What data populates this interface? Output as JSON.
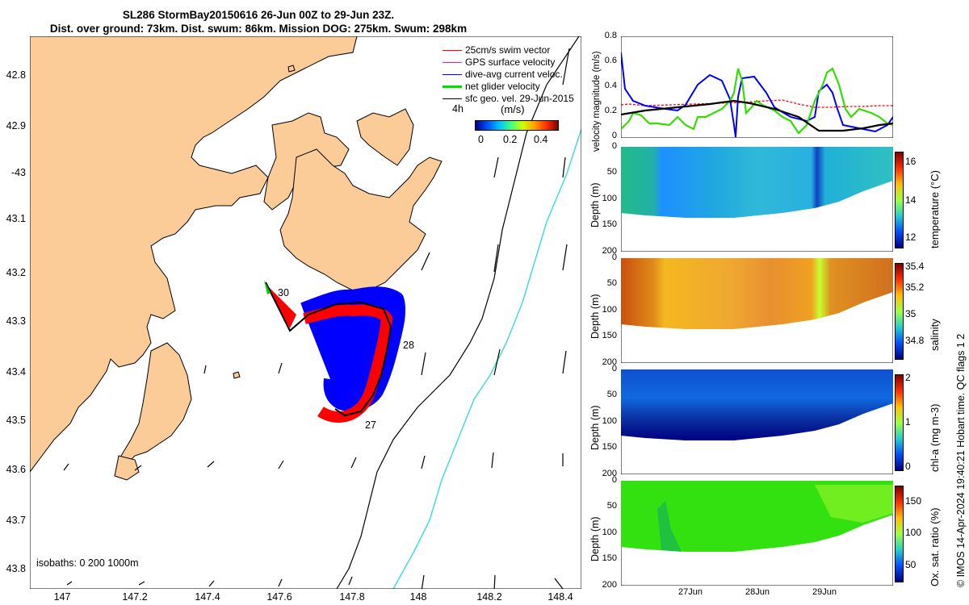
{
  "title": {
    "line1": "SL286 StormBay20150616 26-Jun 00Z to 29-Jun 23Z.",
    "line2": "Dist. over ground: 73km. Dist. swum: 86km. Mission DOG: 275km. Swum: 298km"
  },
  "map": {
    "lat_labels": [
      "42.8",
      "42.9",
      "-43",
      "43.1",
      "43.2",
      "43.3",
      "43.4",
      "43.5",
      "43.6",
      "43.7",
      "43.8"
    ],
    "lon_labels": [
      "147",
      "147.2",
      "147.4",
      "147.6",
      "147.8",
      "148",
      "148.2",
      "148.4"
    ],
    "legend": [
      {
        "label": "25cm/s swim vector",
        "color": "#ff0000"
      },
      {
        "label": "GPS surface velocity",
        "color": "#ff00ff"
      },
      {
        "label": "dive-avg current veloc.",
        "color": "#0000ff"
      },
      {
        "label": "net glider velocity",
        "color": "#00e000"
      },
      {
        "label": "sfc geo. vel. 29-Jun-2015",
        "color": "#000000"
      }
    ],
    "colorbar": {
      "title": "(m/s)",
      "time_label": "4h",
      "ticks": [
        "0",
        "0.2",
        "0.4"
      ]
    },
    "isobaths": "isobaths: 0   200  1000m",
    "day_labels": [
      "30",
      "28",
      "27"
    ]
  },
  "panels": {
    "velocity": {
      "ylabel": "velocity magnitude (m/s)",
      "yticks": [
        "0.8",
        "0.6",
        "0.4",
        "0.2",
        "0"
      ]
    },
    "temperature": {
      "ylabel": "Depth (m)",
      "cblabel": "temperature (°C)",
      "yticks": [
        "0",
        "50",
        "100",
        "150",
        "200"
      ],
      "cbticks": [
        "16",
        "14",
        "12"
      ]
    },
    "salinity": {
      "ylabel": "Depth (m)",
      "cblabel": "salinity",
      "yticks": [
        "0",
        "50",
        "100",
        "150",
        "200"
      ],
      "cbticks": [
        "35.4",
        "35.2",
        "35",
        "34.8"
      ]
    },
    "chla": {
      "ylabel": "Depth (m)",
      "cblabel": "chl-a (mg m-3)",
      "yticks": [
        "0",
        "50",
        "100",
        "150",
        "200"
      ],
      "cbticks": [
        "2",
        "1",
        "0"
      ]
    },
    "oxygen": {
      "ylabel": "Depth (m)",
      "cblabel": "Ox. sat. ratio (%)",
      "yticks": [
        "0",
        "50",
        "100",
        "150",
        "200"
      ],
      "cbticks": [
        "150",
        "100",
        "50"
      ]
    },
    "xticks": [
      "27Jun",
      "28Jun",
      "29Jun"
    ]
  },
  "footer": "© IMOS 14-Apr-2024 19:40:21 Hobart time. QC flags 1  2"
}
